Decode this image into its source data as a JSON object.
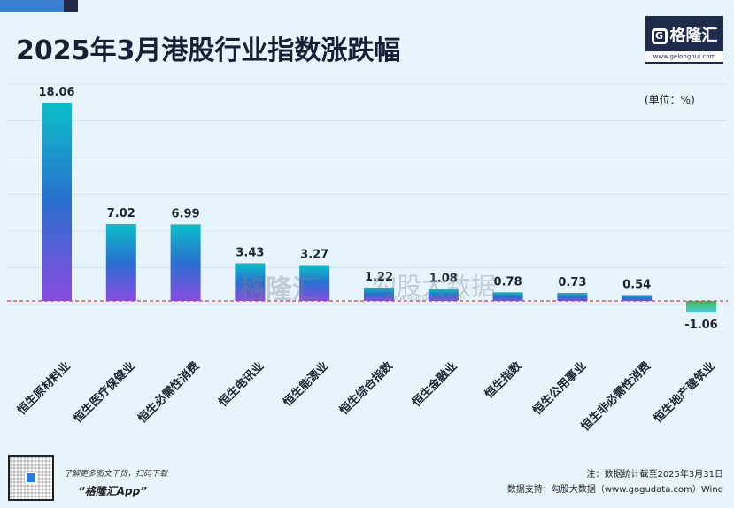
{
  "title": "2025年3月港股行业指数涨跌幅",
  "unit_label": "(单位：%)",
  "logo": {
    "name": "格隆汇",
    "url": "www.gelonghui.com"
  },
  "watermark": {
    "left": "格隆汇",
    "right": "勾股大数据",
    "right_url": "www.gogudata.com"
  },
  "footer": {
    "tip": "了解更多图文干货，扫码下载",
    "app": "“格隆汇App”",
    "note": "注：数据统计截至2025年3月31日",
    "source": "数据支持：勾股大数据（www.gogudata.com）Wind"
  },
  "colors": {
    "bar_top": "#0bbfc9",
    "bar_mid": "#2a6fcf",
    "bar_bottom": "#8a4be0",
    "neg_top": "#2fbf4f",
    "neg_bottom": "#5ac8e8",
    "zero_line": "#d93a3a"
  },
  "chart_data": {
    "type": "bar",
    "title": "2025年3月港股行业指数涨跌幅",
    "unit": "(单位：%)",
    "categories": [
      "恒生原材料业",
      "恒生医疗保健业",
      "恒生必需性消费",
      "恒生电讯业",
      "恒生能源业",
      "恒生综合指数",
      "恒生金融业",
      "恒生指数",
      "恒生公用事业",
      "恒生非必需性消费",
      "恒生地产建筑业"
    ],
    "values": [
      18.06,
      7.02,
      6.99,
      3.43,
      3.27,
      1.22,
      1.08,
      0.78,
      0.73,
      0.54,
      -1.06
    ],
    "value_labels": [
      "18.06",
      "7.02",
      "6.99",
      "3.43",
      "3.27",
      "1.22",
      "1.08",
      "0.78",
      "0.73",
      "0.54",
      "-1.06"
    ],
    "ylim": [
      -1.06,
      18.06
    ],
    "grid": true,
    "legend": "none"
  }
}
